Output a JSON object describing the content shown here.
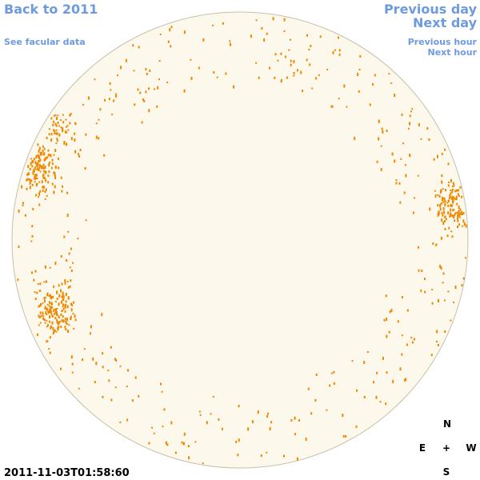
{
  "header": {
    "back_link": "Back to 2011",
    "facular_link": "See facular data",
    "previous_day": "Previous day",
    "next_day": "Next day",
    "previous_hour": "Previous hour",
    "next_hour": "Next hour"
  },
  "footer": {
    "timestamp": "2011-11-03T01:58:60"
  },
  "compass": {
    "north": "N",
    "east": "E",
    "center": "+",
    "west": "W",
    "south": "S"
  }
}
